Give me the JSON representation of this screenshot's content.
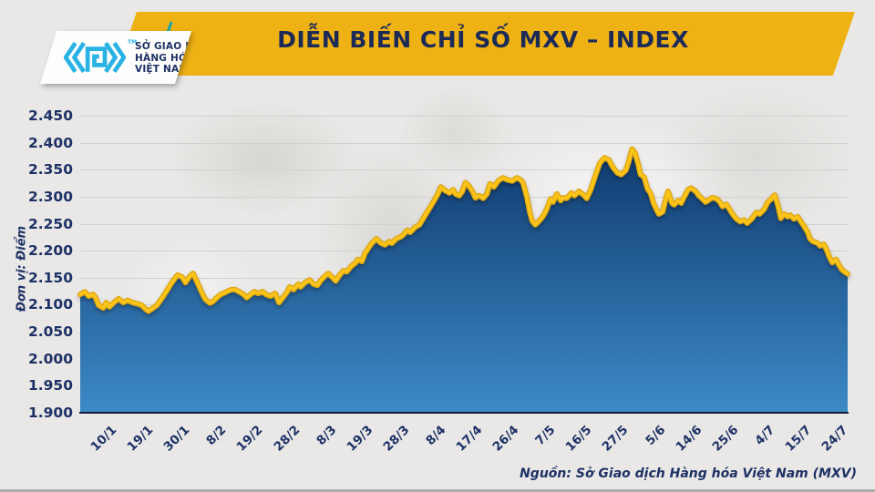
{
  "header": {
    "title": "DIỄN BIẾN CHỈ SỐ MXV – INDEX",
    "logo": {
      "line1": "SỞ GIAO DỊCH",
      "line2": "HÀNG HÓA",
      "line3": "VIỆT NAM",
      "tm": "TM"
    }
  },
  "footer": {
    "source": "Nguồn: Sở Giao dịch Hàng hóa Việt Nam (MXV)"
  },
  "colors": {
    "banner_gold": "#efb214",
    "title_navy": "#1c2a58",
    "axis_navy": "#1e3166",
    "line_gold": "#fcc51c",
    "line_gold_edge": "#dfa60f",
    "fill_top": "#0f3a6e",
    "fill_bottom": "#3d8ac7",
    "logo_cyan": "#29b2e4",
    "teal_accent": "#17a2b1",
    "baseline_dark": "#111d3a"
  },
  "chart_data": {
    "type": "area",
    "title": "DIỄN BIẾN CHỈ SỐ MXV – INDEX",
    "ylabel": "Đơn vị: Điểm",
    "ylim": [
      1.9,
      2.45
    ],
    "ytick_step": 0.05,
    "grid": true,
    "legend": false,
    "ytick_labels": [
      "2.450",
      "2.400",
      "2.350",
      "2.300",
      "2.250",
      "2.200",
      "2.150",
      "2.100",
      "2.050",
      "2.000",
      "1.950",
      "1.900"
    ],
    "xtick_labels": [
      "10/1",
      "19/1",
      "30/1",
      "8/2",
      "19/2",
      "28/2",
      "8/3",
      "19/3",
      "28/3",
      "8/4",
      "17/4",
      "26/4",
      "7/5",
      "16/5",
      "27/5",
      "5/6",
      "14/6",
      "25/6",
      "4/7",
      "15/7",
      "24/7"
    ],
    "points": [
      [
        0,
        2.119
      ],
      [
        0.006,
        2.124
      ],
      [
        0.011,
        2.116
      ],
      [
        0.017,
        2.119
      ],
      [
        0.02,
        2.113
      ],
      [
        0.024,
        2.099
      ],
      [
        0.03,
        2.094
      ],
      [
        0.034,
        2.104
      ],
      [
        0.038,
        2.096
      ],
      [
        0.044,
        2.104
      ],
      [
        0.05,
        2.111
      ],
      [
        0.056,
        2.104
      ],
      [
        0.062,
        2.108
      ],
      [
        0.068,
        2.104
      ],
      [
        0.074,
        2.102
      ],
      [
        0.08,
        2.099
      ],
      [
        0.086,
        2.091
      ],
      [
        0.089,
        2.088
      ],
      [
        0.095,
        2.094
      ],
      [
        0.1,
        2.099
      ],
      [
        0.106,
        2.111
      ],
      [
        0.112,
        2.124
      ],
      [
        0.118,
        2.138
      ],
      [
        0.124,
        2.15
      ],
      [
        0.127,
        2.155
      ],
      [
        0.133,
        2.151
      ],
      [
        0.137,
        2.141
      ],
      [
        0.143,
        2.153
      ],
      [
        0.147,
        2.158
      ],
      [
        0.153,
        2.14
      ],
      [
        0.158,
        2.124
      ],
      [
        0.163,
        2.11
      ],
      [
        0.169,
        2.103
      ],
      [
        0.173,
        2.106
      ],
      [
        0.178,
        2.113
      ],
      [
        0.183,
        2.119
      ],
      [
        0.188,
        2.122
      ],
      [
        0.192,
        2.125
      ],
      [
        0.197,
        2.128
      ],
      [
        0.202,
        2.128
      ],
      [
        0.207,
        2.124
      ],
      [
        0.213,
        2.119
      ],
      [
        0.217,
        2.113
      ],
      [
        0.222,
        2.119
      ],
      [
        0.227,
        2.124
      ],
      [
        0.232,
        2.121
      ],
      [
        0.238,
        2.124
      ],
      [
        0.242,
        2.119
      ],
      [
        0.248,
        2.116
      ],
      [
        0.254,
        2.121
      ],
      [
        0.259,
        2.104
      ],
      [
        0.264,
        2.113
      ],
      [
        0.27,
        2.124
      ],
      [
        0.273,
        2.133
      ],
      [
        0.278,
        2.128
      ],
      [
        0.284,
        2.138
      ],
      [
        0.287,
        2.133
      ],
      [
        0.293,
        2.141
      ],
      [
        0.299,
        2.146
      ],
      [
        0.304,
        2.138
      ],
      [
        0.309,
        2.136
      ],
      [
        0.314,
        2.146
      ],
      [
        0.319,
        2.153
      ],
      [
        0.323,
        2.158
      ],
      [
        0.329,
        2.15
      ],
      [
        0.333,
        2.144
      ],
      [
        0.338,
        2.155
      ],
      [
        0.343,
        2.163
      ],
      [
        0.347,
        2.161
      ],
      [
        0.353,
        2.171
      ],
      [
        0.359,
        2.178
      ],
      [
        0.362,
        2.184
      ],
      [
        0.367,
        2.18
      ],
      [
        0.371,
        2.195
      ],
      [
        0.376,
        2.206
      ],
      [
        0.38,
        2.214
      ],
      [
        0.386,
        2.222
      ],
      [
        0.392,
        2.214
      ],
      [
        0.397,
        2.211
      ],
      [
        0.403,
        2.217
      ],
      [
        0.406,
        2.214
      ],
      [
        0.412,
        2.222
      ],
      [
        0.418,
        2.226
      ],
      [
        0.422,
        2.231
      ],
      [
        0.426,
        2.238
      ],
      [
        0.43,
        2.234
      ],
      [
        0.436,
        2.243
      ],
      [
        0.442,
        2.248
      ],
      [
        0.448,
        2.262
      ],
      [
        0.454,
        2.276
      ],
      [
        0.46,
        2.29
      ],
      [
        0.466,
        2.305
      ],
      [
        0.47,
        2.318
      ],
      [
        0.475,
        2.312
      ],
      [
        0.481,
        2.307
      ],
      [
        0.486,
        2.313
      ],
      [
        0.489,
        2.305
      ],
      [
        0.494,
        2.302
      ],
      [
        0.498,
        2.31
      ],
      [
        0.502,
        2.326
      ],
      [
        0.506,
        2.321
      ],
      [
        0.511,
        2.31
      ],
      [
        0.515,
        2.298
      ],
      [
        0.52,
        2.302
      ],
      [
        0.525,
        2.297
      ],
      [
        0.53,
        2.305
      ],
      [
        0.534,
        2.324
      ],
      [
        0.539,
        2.318
      ],
      [
        0.545,
        2.33
      ],
      [
        0.551,
        2.335
      ],
      [
        0.557,
        2.331
      ],
      [
        0.563,
        2.329
      ],
      [
        0.569,
        2.335
      ],
      [
        0.574,
        2.331
      ],
      [
        0.577,
        2.326
      ],
      [
        0.582,
        2.3
      ],
      [
        0.586,
        2.27
      ],
      [
        0.589,
        2.255
      ],
      [
        0.593,
        2.248
      ],
      [
        0.596,
        2.252
      ],
      [
        0.601,
        2.26
      ],
      [
        0.604,
        2.266
      ],
      [
        0.608,
        2.277
      ],
      [
        0.613,
        2.296
      ],
      [
        0.616,
        2.29
      ],
      [
        0.621,
        2.305
      ],
      [
        0.626,
        2.293
      ],
      [
        0.629,
        2.298
      ],
      [
        0.634,
        2.297
      ],
      [
        0.64,
        2.307
      ],
      [
        0.644,
        2.302
      ],
      [
        0.65,
        2.31
      ],
      [
        0.656,
        2.303
      ],
      [
        0.66,
        2.297
      ],
      [
        0.665,
        2.312
      ],
      [
        0.671,
        2.338
      ],
      [
        0.677,
        2.362
      ],
      [
        0.683,
        2.372
      ],
      [
        0.689,
        2.368
      ],
      [
        0.694,
        2.355
      ],
      [
        0.7,
        2.344
      ],
      [
        0.705,
        2.341
      ],
      [
        0.711,
        2.349
      ],
      [
        0.715,
        2.366
      ],
      [
        0.719,
        2.388
      ],
      [
        0.723,
        2.381
      ],
      [
        0.727,
        2.361
      ],
      [
        0.73,
        2.341
      ],
      [
        0.735,
        2.336
      ],
      [
        0.739,
        2.315
      ],
      [
        0.743,
        2.307
      ],
      [
        0.747,
        2.288
      ],
      [
        0.751,
        2.276
      ],
      [
        0.754,
        2.268
      ],
      [
        0.759,
        2.272
      ],
      [
        0.762,
        2.29
      ],
      [
        0.766,
        2.31
      ],
      [
        0.771,
        2.288
      ],
      [
        0.774,
        2.285
      ],
      [
        0.779,
        2.293
      ],
      [
        0.783,
        2.288
      ],
      [
        0.786,
        2.297
      ],
      [
        0.792,
        2.313
      ],
      [
        0.796,
        2.316
      ],
      [
        0.802,
        2.31
      ],
      [
        0.806,
        2.302
      ],
      [
        0.81,
        2.297
      ],
      [
        0.815,
        2.29
      ],
      [
        0.818,
        2.293
      ],
      [
        0.823,
        2.298
      ],
      [
        0.828,
        2.297
      ],
      [
        0.833,
        2.291
      ],
      [
        0.837,
        2.282
      ],
      [
        0.842,
        2.286
      ],
      [
        0.846,
        2.277
      ],
      [
        0.85,
        2.268
      ],
      [
        0.855,
        2.259
      ],
      [
        0.86,
        2.254
      ],
      [
        0.865,
        2.257
      ],
      [
        0.869,
        2.251
      ],
      [
        0.875,
        2.259
      ],
      [
        0.881,
        2.271
      ],
      [
        0.885,
        2.268
      ],
      [
        0.891,
        2.276
      ],
      [
        0.896,
        2.29
      ],
      [
        0.899,
        2.294
      ],
      [
        0.905,
        2.303
      ],
      [
        0.909,
        2.285
      ],
      [
        0.913,
        2.26
      ],
      [
        0.917,
        2.268
      ],
      [
        0.922,
        2.263
      ],
      [
        0.925,
        2.266
      ],
      [
        0.93,
        2.259
      ],
      [
        0.935,
        2.263
      ],
      [
        0.938,
        2.256
      ],
      [
        0.943,
        2.246
      ],
      [
        0.948,
        2.234
      ],
      [
        0.951,
        2.222
      ],
      [
        0.955,
        2.217
      ],
      [
        0.961,
        2.214
      ],
      [
        0.964,
        2.209
      ],
      [
        0.969,
        2.212
      ],
      [
        0.973,
        2.2
      ],
      [
        0.976,
        2.189
      ],
      [
        0.98,
        2.178
      ],
      [
        0.985,
        2.184
      ],
      [
        0.988,
        2.175
      ],
      [
        0.993,
        2.164
      ],
      [
        0.996,
        2.161
      ],
      [
        1,
        2.157
      ]
    ]
  }
}
